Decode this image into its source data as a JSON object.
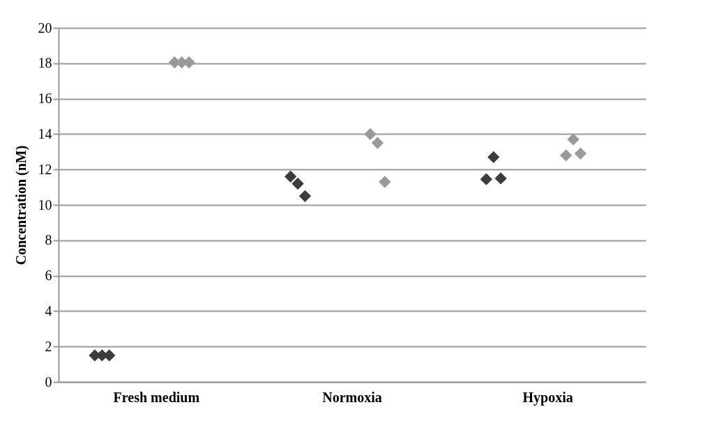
{
  "chart_data": {
    "type": "scatter",
    "ylabel": "Concentration (nM)",
    "categories": [
      "Fresh medium",
      "Normoxia",
      "Hypoxia"
    ],
    "series": [
      {
        "color": "#3c3c3c",
        "values": [
          1.5,
          11.6,
          11.45
        ]
      },
      {
        "color": "#3c3c3c",
        "values": [
          1.5,
          11.2,
          12.7
        ]
      },
      {
        "color": "#3c3c3c",
        "values": [
          1.5,
          10.5,
          11.5
        ]
      },
      {
        "color": "#999999",
        "values": [
          18.05,
          14.0,
          12.8
        ]
      },
      {
        "color": "#999999",
        "values": [
          18.05,
          13.5,
          13.7
        ]
      },
      {
        "color": "#999999",
        "values": [
          18.05,
          11.3,
          12.9
        ]
      }
    ],
    "ylim": [
      0,
      20
    ],
    "yticks": [
      0,
      2,
      4,
      6,
      8,
      10,
      12,
      14,
      16,
      18,
      20
    ],
    "grid": "y",
    "marker": "diamond",
    "legend": false
  }
}
